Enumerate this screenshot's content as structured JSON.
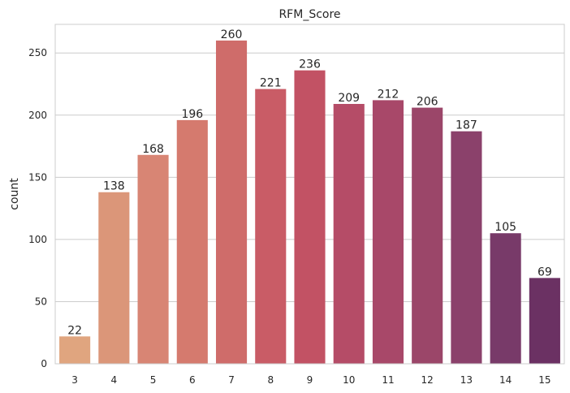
{
  "chart_data": {
    "type": "bar",
    "title": "RFM_Score",
    "xlabel": "",
    "ylabel": "count",
    "categories": [
      "3",
      "4",
      "5",
      "6",
      "7",
      "8",
      "9",
      "10",
      "11",
      "12",
      "13",
      "14",
      "15"
    ],
    "values": [
      22,
      138,
      168,
      196,
      260,
      221,
      236,
      209,
      212,
      206,
      187,
      105,
      69
    ],
    "data_labels": [
      "22",
      "138",
      "168",
      "196",
      "260",
      "221",
      "236",
      "209",
      "212",
      "206",
      "187",
      "105",
      "69"
    ],
    "ylim": [
      0,
      273
    ],
    "yticks": [
      0,
      50,
      100,
      150,
      200,
      250
    ],
    "grid": "horizontal",
    "legend": "none",
    "colors": [
      "#e0a57f",
      "#db9679",
      "#d88574",
      "#d57a6e",
      "#cf6c6a",
      "#c95c66",
      "#c25264",
      "#b54c67",
      "#a84869",
      "#9b4669",
      "#8b416b",
      "#783a69",
      "#6b3163"
    ],
    "background": "#ffffff",
    "grid_color": "#cccccc",
    "frame_color": "#cccccc"
  }
}
